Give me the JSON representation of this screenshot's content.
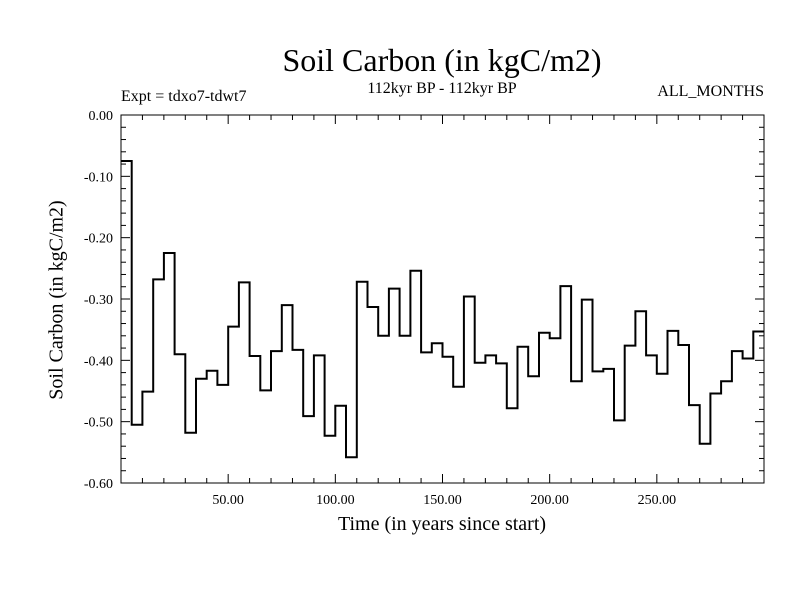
{
  "chart_data": {
    "type": "line",
    "step": true,
    "title": "Soil Carbon (in kgC/m2)",
    "subtitle": "112kyr BP - 112kyr BP",
    "expt_label": "Expt = tdxo7-tdwt7",
    "period_label": "ALL_MONTHS",
    "xlabel": "Time (in years since start)",
    "ylabel": "Soil Carbon (in kgC/m2)",
    "xlim": [
      0,
      300
    ],
    "ylim": [
      -0.6,
      0.0
    ],
    "x_ticks": [
      50,
      100,
      150,
      200,
      250
    ],
    "x_tick_labels": [
      "50.00",
      "100.00",
      "150.00",
      "200.00",
      "250.00"
    ],
    "y_ticks": [
      0.0,
      -0.1,
      -0.2,
      -0.3,
      -0.4,
      -0.5,
      -0.6
    ],
    "y_tick_labels": [
      "0.00",
      "-0.10",
      "-0.20",
      "-0.30",
      "-0.40",
      "-0.50",
      "-0.60"
    ],
    "grid": false,
    "line_color": "#000000",
    "x": [
      0,
      5,
      10,
      15,
      20,
      25,
      30,
      35,
      40,
      45,
      50,
      55,
      60,
      65,
      70,
      75,
      80,
      85,
      90,
      95,
      100,
      105,
      110,
      115,
      120,
      125,
      130,
      135,
      140,
      145,
      150,
      155,
      160,
      165,
      170,
      175,
      180,
      185,
      190,
      195,
      200,
      205,
      210,
      215,
      220,
      225,
      230,
      235,
      240,
      245,
      250,
      255,
      260,
      265,
      270,
      275,
      280,
      285,
      290,
      295
    ],
    "values": [
      -0.075,
      -0.505,
      -0.451,
      -0.268,
      -0.225,
      -0.39,
      -0.518,
      -0.43,
      -0.417,
      -0.44,
      -0.345,
      -0.273,
      -0.393,
      -0.449,
      -0.385,
      -0.31,
      -0.383,
      -0.491,
      -0.392,
      -0.523,
      -0.474,
      -0.558,
      -0.272,
      -0.313,
      -0.36,
      -0.283,
      -0.36,
      -0.254,
      -0.387,
      -0.372,
      -0.394,
      -0.443,
      -0.296,
      -0.404,
      -0.392,
      -0.405,
      -0.478,
      -0.378,
      -0.426,
      -0.355,
      -0.364,
      -0.279,
      -0.434,
      -0.301,
      -0.418,
      -0.414,
      -0.498,
      -0.376,
      -0.32,
      -0.392,
      -0.422,
      -0.352,
      -0.375,
      -0.473,
      -0.536,
      -0.454,
      -0.434,
      -0.385,
      -0.397,
      -0.353
    ]
  }
}
